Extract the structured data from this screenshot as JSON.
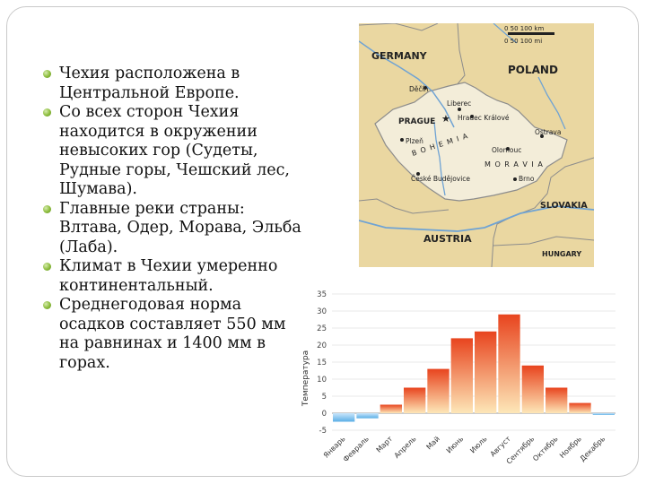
{
  "slide": {
    "bullets": [
      "Чехия расположена в Центральной Европе.",
      "Со всех сторон Чехия находится в окружении невысоких гор (Судеты, Рудные горы, Чешский лес, Шумава).",
      "Главные реки страны: Влтава, Одер, Морава, Эльба (Лаба).",
      "Климат в Чехии умеренно континентальный.",
      "Среднегодовая норма осадков составляет 550 мм на равнинах и 1400 мм в горах."
    ]
  },
  "map": {
    "scale": {
      "top": "0    50   100 km",
      "bottom": "0      50    100 mi"
    },
    "countries": {
      "germany": "GERMANY",
      "poland": "POLAND",
      "slovakia": "SLOVAKIA",
      "austria": "AUSTRIA",
      "hungary": "HUNGARY"
    },
    "regions": {
      "bohemia": "B O H E M I A",
      "moravia": "M O R A V I A"
    },
    "capital": "PRAGUE",
    "cities": [
      "Děčín",
      "Liberec",
      "Hradec Králové",
      "Plzeň",
      "Olomouc",
      "Ostrava",
      "České Budějovice",
      "Brno"
    ],
    "rivers": [
      "Elbe",
      "Vltava",
      "Danube",
      "Oder"
    ],
    "colors": {
      "land": "#f3edd9",
      "surround": "#ead7a1",
      "border": "#8c8c8c",
      "water": "#6fa3d4"
    }
  },
  "chart_data": {
    "type": "bar",
    "ylabel": "Температура",
    "ylim": [
      -5,
      35
    ],
    "yticks": [
      -5,
      0,
      5,
      10,
      15,
      20,
      25,
      30,
      35
    ],
    "categories": [
      "Январь",
      "Февраль",
      "Март",
      "Апрель",
      "Май",
      "Июнь",
      "Июль",
      "Август",
      "Сентябрь",
      "Октябрь",
      "Ноябрь",
      "Декабрь"
    ],
    "values": [
      -2.5,
      -1.5,
      2.5,
      7.5,
      13,
      22,
      24,
      29,
      14,
      7.5,
      3,
      -0.5
    ],
    "grid": true,
    "colors": {
      "warm_top": "#e8441e",
      "warm_bottom": "#fde7b8",
      "cold": "#5aaee6"
    }
  }
}
